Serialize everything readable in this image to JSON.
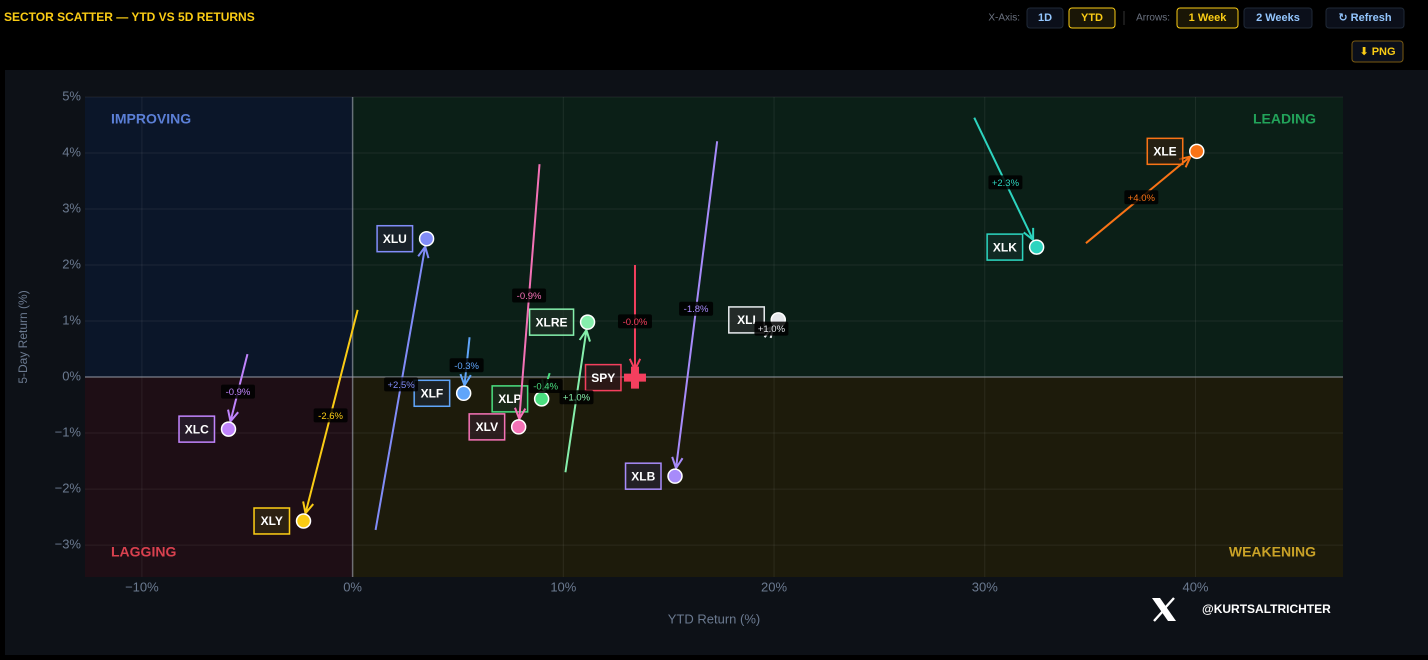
{
  "header": {
    "title": "SECTOR SCATTER — YTD VS 5D RETURNS"
  },
  "controls": {
    "x_axis_label": "X-Axis:",
    "x_axis_options": [
      "1D",
      "YTD"
    ],
    "x_axis_selected": 1,
    "arrows_label": "Arrows:",
    "arrow_options": [
      "1 Week",
      "2 Weeks"
    ],
    "arrows_selected": 0,
    "refresh": "↻ Refresh",
    "export": "⬇ PNG"
  },
  "chart_data": {
    "type": "scatter",
    "x_label": "YTD Return (%)",
    "y_label": "5-Day Return (%)",
    "annotations": [
      "IMPROVING",
      "LEADING",
      "LAGGING",
      "WEAKENING"
    ],
    "xlim": [
      -12.7,
      47.0
    ],
    "ylim": [
      -3.57,
      5.0
    ],
    "xticks": [
      {
        "value": -10,
        "label": "−10%"
      },
      {
        "value": 0,
        "label": "0%"
      },
      {
        "value": 10,
        "label": "10%"
      },
      {
        "value": 20,
        "label": "20%"
      },
      {
        "value": 30,
        "label": "30%"
      },
      {
        "value": 40,
        "label": "40%"
      }
    ],
    "yticks": [
      {
        "value": -3,
        "label": "−3%"
      },
      {
        "value": -2,
        "label": "−2%"
      },
      {
        "value": -1,
        "label": "−1%"
      },
      {
        "value": 0,
        "label": "0%"
      },
      {
        "value": 1,
        "label": "1%"
      },
      {
        "value": 2,
        "label": "2%"
      },
      {
        "value": 3,
        "label": "3%"
      },
      {
        "value": 4,
        "label": "4%"
      },
      {
        "value": 5,
        "label": "5%"
      }
    ],
    "grid": true,
    "series": [
      {
        "name": "XLE",
        "color": "#f97316",
        "marker": "circle",
        "x": [
          34.8,
          40.06
        ],
        "values": [
          2.39,
          4.03
        ],
        "value_labels": [
          null,
          "+4.0%"
        ]
      },
      {
        "name": "XLK",
        "color": "#2dd4bf",
        "marker": "circle",
        "x": [
          29.5,
          32.46
        ],
        "values": [
          4.63,
          2.32
        ],
        "value_labels": [
          null,
          "+2.3%"
        ]
      },
      {
        "name": "XLI",
        "color": "#e5e7eb",
        "marker": "circle",
        "x": [
          19.55,
          20.2
        ],
        "values": [
          0.71,
          1.02
        ],
        "value_labels": [
          null,
          "+1.0%"
        ]
      },
      {
        "name": "XLB",
        "color": "#a78bfa",
        "marker": "circle",
        "x": [
          17.3,
          15.3
        ],
        "values": [
          4.21,
          -1.77
        ],
        "value_labels": [
          null,
          "-1.8%"
        ]
      },
      {
        "name": "SPY",
        "color": "#f43f5e",
        "marker": "cross",
        "x": [
          13.4,
          13.4
        ],
        "values": [
          2.0,
          -0.01
        ],
        "value_labels": [
          null,
          "-0.0%"
        ]
      },
      {
        "name": "XLRE",
        "color": "#86efac",
        "marker": "circle",
        "x": [
          10.1,
          11.15
        ],
        "values": [
          -1.7,
          0.98
        ],
        "value_labels": [
          null,
          "+1.0%"
        ]
      },
      {
        "name": "XLP",
        "color": "#4ade80",
        "marker": "circle",
        "x": [
          9.35,
          8.97
        ],
        "values": [
          0.07,
          -0.39
        ],
        "value_labels": [
          null,
          "-0.4%"
        ]
      },
      {
        "name": "XLV",
        "color": "#f472b6",
        "marker": "circle",
        "x": [
          8.87,
          7.88
        ],
        "values": [
          3.8,
          -0.89
        ],
        "value_labels": [
          null,
          "-0.9%"
        ]
      },
      {
        "name": "XLF",
        "color": "#60a5fa",
        "marker": "circle",
        "x": [
          5.55,
          5.27
        ],
        "values": [
          0.71,
          -0.29
        ],
        "value_labels": [
          null,
          "-0.3%"
        ]
      },
      {
        "name": "XLU",
        "color": "#818cf8",
        "marker": "circle",
        "x": [
          1.09,
          3.51
        ],
        "values": [
          -2.73,
          2.47
        ],
        "value_labels": [
          null,
          "+2.5%"
        ]
      },
      {
        "name": "XLY",
        "color": "#facc15",
        "marker": "circle",
        "x": [
          0.24,
          -2.33
        ],
        "values": [
          1.2,
          -2.57
        ],
        "value_labels": [
          null,
          "-2.6%"
        ]
      },
      {
        "name": "XLC",
        "color": "#c084fc",
        "marker": "circle",
        "x": [
          -4.99,
          -5.89
        ],
        "values": [
          0.41,
          -0.93
        ],
        "value_labels": [
          null,
          "-0.9%"
        ]
      }
    ]
  },
  "footer": {
    "handle": "@KURTSALTRICHTER"
  }
}
